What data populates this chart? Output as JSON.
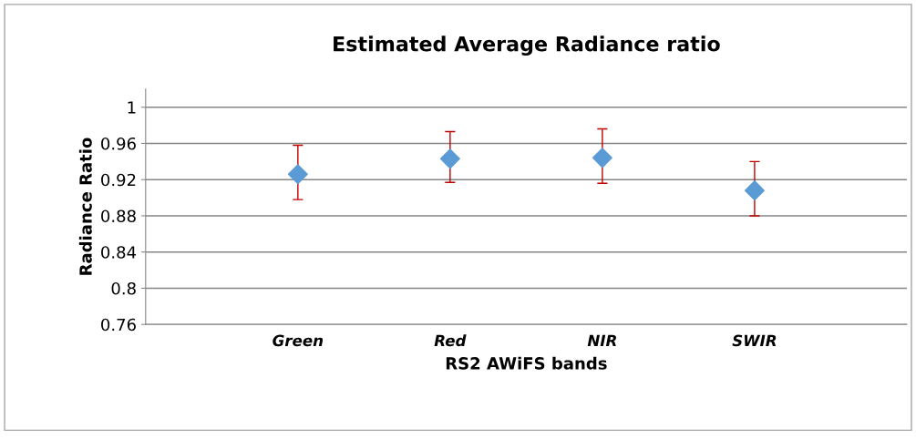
{
  "chart_data": {
    "type": "scatter",
    "title": "Estimated Average Radiance ratio",
    "xlabel": "RS2 AWiFS bands",
    "ylabel": "Radiance Ratio",
    "categories": [
      "Green",
      "Red",
      "NIR",
      "SWIR"
    ],
    "values": [
      0.926,
      0.943,
      0.944,
      0.908
    ],
    "errors": [
      [
        0.898,
        0.958
      ],
      [
        0.917,
        0.973
      ],
      [
        0.916,
        0.976
      ],
      [
        0.88,
        0.94
      ]
    ],
    "color": "#5b9bd5",
    "ylim": [
      0.76,
      1.02
    ],
    "yticks": [
      0.76,
      0.8,
      0.84,
      0.88,
      0.92,
      0.96,
      1
    ],
    "grid": "y",
    "marker": "diamond",
    "legend": false
  }
}
